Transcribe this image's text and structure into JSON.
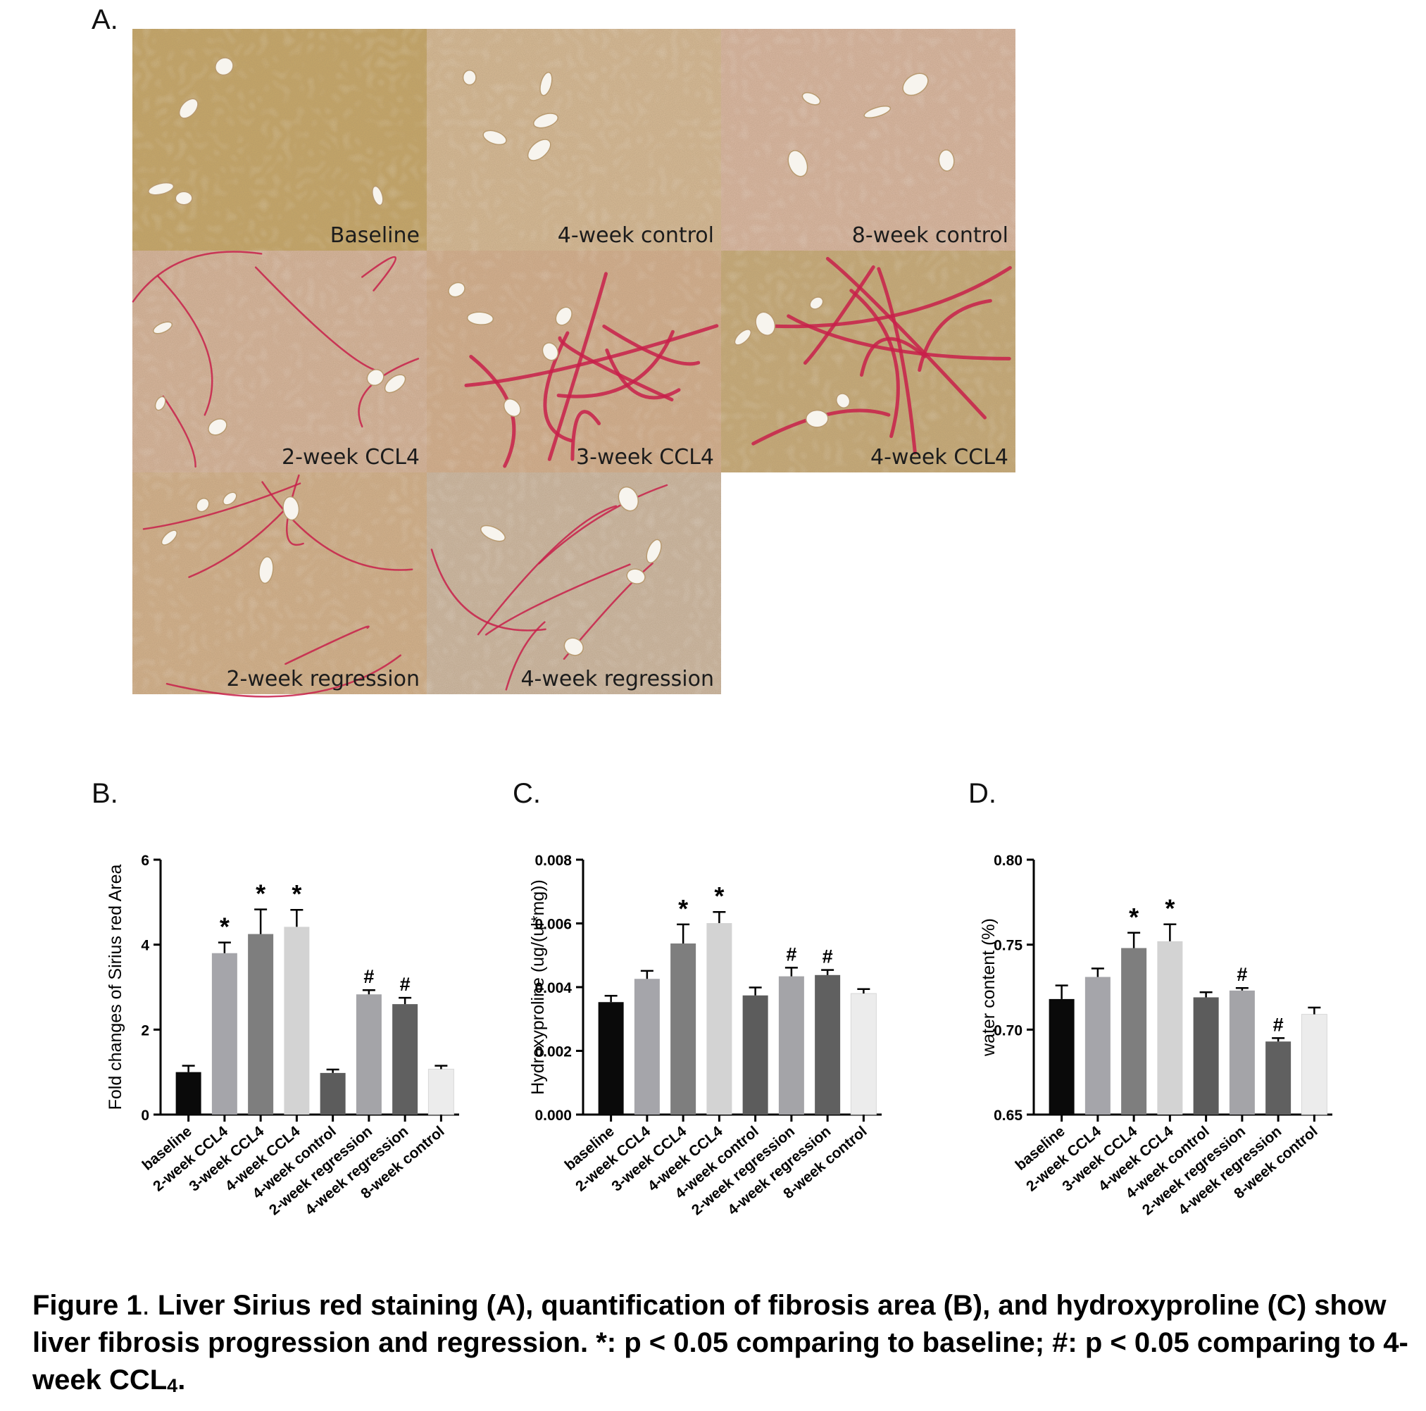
{
  "panel_labels": {
    "a": "A.",
    "b": "B.",
    "c": "C.",
    "d": "D."
  },
  "micrographs": [
    {
      "label": "Baseline",
      "fibrosis": "none",
      "tint": "#c7a867"
    },
    {
      "label": "4-week control",
      "fibrosis": "none",
      "tint": "#d8bc97"
    },
    {
      "label": "8-week control",
      "fibrosis": "none",
      "tint": "#dcb9a4"
    },
    {
      "label": "2-week CCL4",
      "fibrosis": "mild",
      "tint": "#d9b79e"
    },
    {
      "label": "3-week CCL4",
      "fibrosis": "strong",
      "tint": "#d6b190"
    },
    {
      "label": "4-week CCL4",
      "fibrosis": "strong",
      "tint": "#c9ad79"
    },
    {
      "label": "2-week regression",
      "fibrosis": "mild",
      "tint": "#d5b38d"
    },
    {
      "label": "4-week regression",
      "fibrosis": "mild",
      "tint": "#cfbba6"
    }
  ],
  "chart_data": [
    {
      "type": "bar",
      "panel": "B.",
      "ylabel": "Fold changes of Sirius red Area",
      "ylim": [
        0,
        6
      ],
      "yticks": [
        0,
        2,
        4,
        6
      ],
      "categories": [
        "baseline",
        "2-week CCL4",
        "3-week CCL4",
        "4-week CCL4",
        "4-week control",
        "2-week regression",
        "4-week regression",
        "8-week control"
      ],
      "values": [
        1.0,
        3.8,
        4.25,
        4.42,
        0.98,
        2.83,
        2.6,
        1.07
      ],
      "errors": [
        0.15,
        0.25,
        0.58,
        0.4,
        0.08,
        0.1,
        0.15,
        0.08
      ],
      "markers": [
        "",
        "*",
        "*",
        "*",
        "",
        "#",
        "#",
        ""
      ],
      "colors": [
        "#0a0a0a",
        "#a5a5aa",
        "#7e7e7e",
        "#d3d3d3",
        "#5c5c5c",
        "#a4a4a8",
        "#606060",
        "#ececec"
      ]
    },
    {
      "type": "bar",
      "panel": "C.",
      "ylabel": "Hydroxyproline (ug/(ul*mg))",
      "ylim": [
        0,
        0.008
      ],
      "yticks": [
        "0.000",
        "0.002",
        "0.004",
        "0.006",
        "0.008"
      ],
      "categories": [
        "baseline",
        "2-week CCL4",
        "3-week CCL4",
        "4-week CCL4",
        "4-week control",
        "2-week regression",
        "4-week regression",
        "8-week control"
      ],
      "values": [
        0.00353,
        0.00426,
        0.00537,
        0.00601,
        0.00374,
        0.00434,
        0.00438,
        0.0038
      ],
      "errors": [
        0.0002,
        0.00025,
        0.0006,
        0.00035,
        0.00025,
        0.00027,
        0.00016,
        0.00014
      ],
      "markers": [
        "",
        "",
        "*",
        "*",
        "",
        "#",
        "#",
        ""
      ],
      "colors": [
        "#0a0a0a",
        "#a5a5aa",
        "#7e7e7e",
        "#d3d3d3",
        "#5c5c5c",
        "#a4a4a8",
        "#606060",
        "#ececec"
      ]
    },
    {
      "type": "bar",
      "panel": "D.",
      "ylabel": "water content (%)",
      "ylim": [
        0.65,
        0.8
      ],
      "yticks": [
        "0.65",
        "0.70",
        "0.75",
        "0.80"
      ],
      "categories": [
        "baseline",
        "2-week CCL4",
        "3-week CCL4",
        "4-week CCL4",
        "4-week control",
        "2-week regression",
        "4-week regression",
        "8-week control"
      ],
      "values": [
        0.718,
        0.731,
        0.748,
        0.752,
        0.719,
        0.723,
        0.693,
        0.709
      ],
      "errors": [
        0.008,
        0.005,
        0.009,
        0.01,
        0.003,
        0.0015,
        0.002,
        0.004
      ],
      "markers": [
        "",
        "",
        "*",
        "*",
        "",
        "#",
        "#",
        ""
      ],
      "colors": [
        "#0a0a0a",
        "#a5a5aa",
        "#7e7e7e",
        "#d3d3d3",
        "#5c5c5c",
        "#a4a4a8",
        "#606060",
        "#ececec"
      ]
    }
  ],
  "caption": {
    "lead": "Figure 1",
    "sep": ".",
    "text": " Liver Sirius red staining (A), quantification of fibrosis area (B), and hydroxyproline (C) show liver fibrosis progression and regression. *: p < 0.05 comparing to baseline; #: p < 0.05 comparing to 4-week CCL",
    "subscript": "4",
    "tail": "."
  }
}
